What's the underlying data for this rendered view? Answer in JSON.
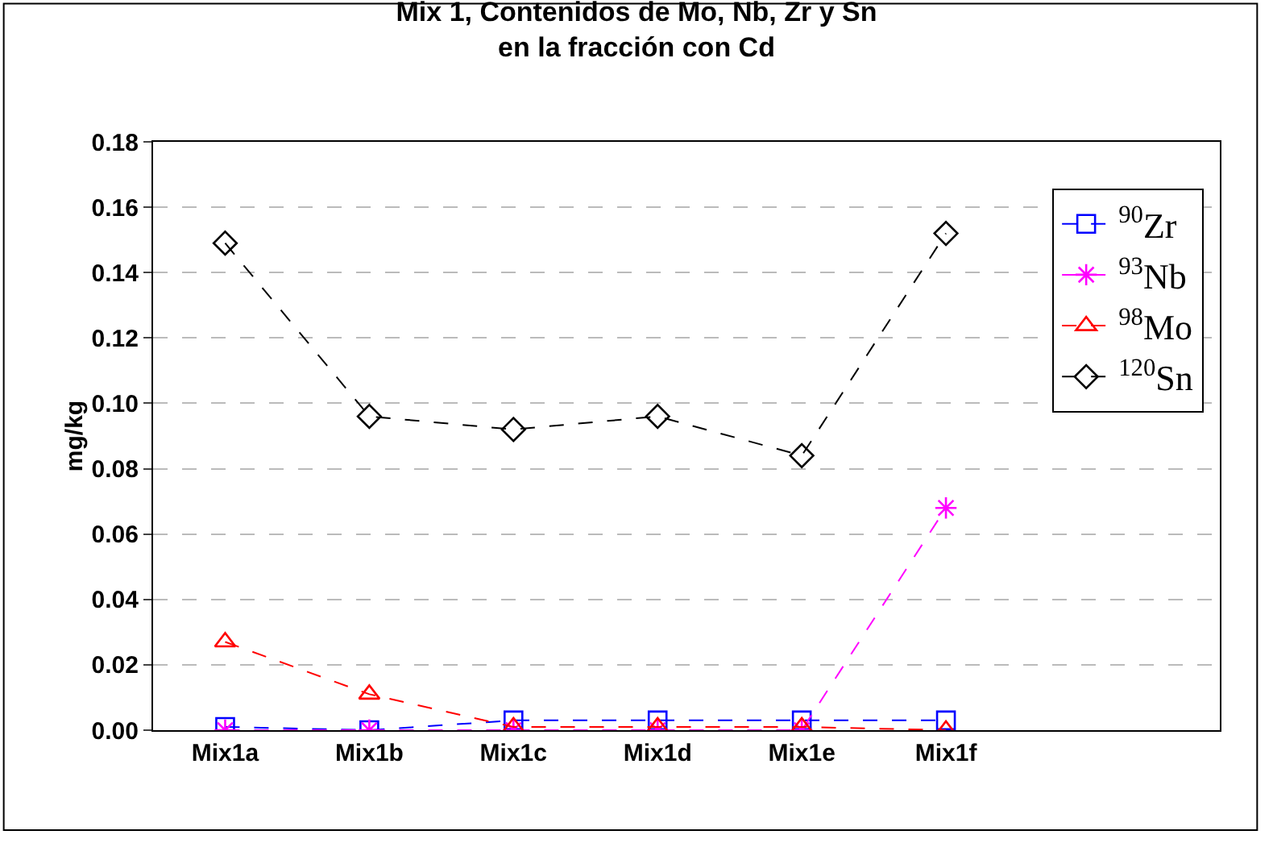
{
  "chart_data": {
    "type": "line",
    "title": "Mix 1, Contenidos de Mo, Nb, Zr y Sn\nen la fracción con Cd",
    "ylabel": "mg/kg",
    "categories": [
      "Mix1a",
      "Mix1b",
      "Mix1c",
      "Mix1d",
      "Mix1e",
      "Mix1f"
    ],
    "series": [
      {
        "name": "$^{90}$Zr",
        "color": "#0000ff",
        "marker": "square",
        "values": [
          0.001,
          0,
          0.003,
          0.003,
          0.003,
          0.003
        ]
      },
      {
        "name": "$^{93}$Nb",
        "color": "#ff00ff",
        "marker": "cross",
        "values": [
          0,
          0,
          0,
          0,
          0,
          0.068
        ]
      },
      {
        "name": "$^{98}$Mo",
        "color": "#ff0000",
        "marker": "triangle",
        "values": [
          0.027,
          0.011,
          0.001,
          0.001,
          0.001,
          0
        ]
      },
      {
        "name": "$^{120}$Sn",
        "color": "#000000",
        "marker": "diamond",
        "values": [
          0.149,
          0.096,
          0.092,
          0.096,
          0.084,
          0.152
        ]
      }
    ],
    "ylim": [
      0,
      0.18
    ],
    "yticks": [
      {
        "value": 0,
        "label": "0.00"
      },
      {
        "value": 0.02,
        "label": "0.02"
      },
      {
        "value": 0.04,
        "label": "0.04"
      },
      {
        "value": 0.06,
        "label": "0.06"
      },
      {
        "value": 0.08,
        "label": "0.08"
      },
      {
        "value": 0.1,
        "label": "0.10"
      },
      {
        "value": 0.12,
        "label": "0.12"
      },
      {
        "value": 0.14,
        "label": "0.14"
      },
      {
        "value": 0.16,
        "label": "0.16"
      },
      {
        "value": 0.18,
        "label": "0.18"
      }
    ],
    "grid": "y",
    "legend": "right",
    "line_style": "dashed"
  }
}
